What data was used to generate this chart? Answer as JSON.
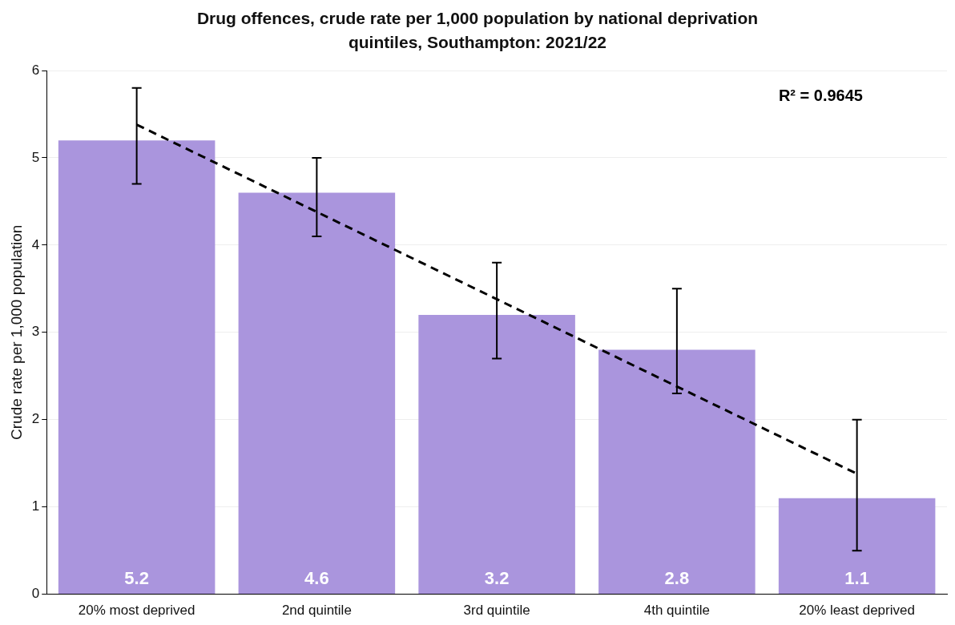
{
  "chart_data": {
    "type": "bar",
    "title": "Drug offences, crude rate per 1,000 population by national deprivation quintiles, Southampton: 2021/22",
    "ylabel": "Crude rate per 1,000 population",
    "categories": [
      "20% most deprived",
      "2nd quintile",
      "3rd quintile",
      "4th quintile",
      "20% least deprived"
    ],
    "series": [
      {
        "color": "#aa95dd",
        "values": [
          5.2,
          4.6,
          3.2,
          2.8,
          1.1
        ],
        "errors": [
          [
            4.7,
            5.8
          ],
          [
            4.1,
            5.0
          ],
          [
            2.7,
            3.8
          ],
          [
            2.3,
            3.5
          ],
          [
            0.5,
            2.0
          ]
        ],
        "value_labels": [
          "5.2",
          "4.6",
          "3.2",
          "2.8",
          "1.1"
        ]
      },
      {
        "type": "line",
        "color": "#000000",
        "values": [
          5.38,
          4.38,
          3.38,
          2.38,
          1.38
        ],
        "line_style": "dashed",
        "marker": "none"
      }
    ],
    "ylim": [
      0,
      6
    ],
    "yticks": [
      0,
      1,
      2,
      3,
      4,
      5,
      6
    ],
    "grid": "y",
    "legend": false,
    "annotations": [
      "R² = 0.9645"
    ]
  }
}
